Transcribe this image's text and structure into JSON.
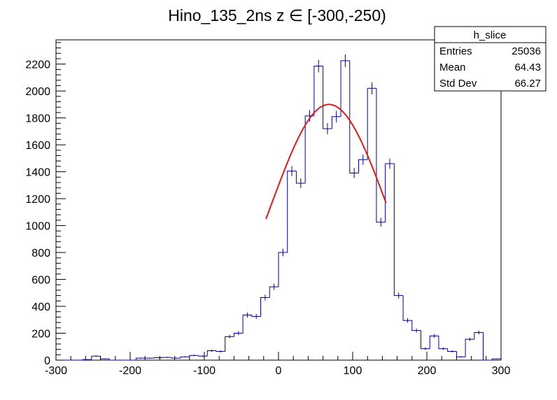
{
  "chart_data": {
    "type": "histogram",
    "title": "Hino_135_2ns z  ∈ [-300,-250)",
    "xlabel": "",
    "ylabel": "",
    "xlim": [
      -300,
      300
    ],
    "ylim": [
      0,
      2380
    ],
    "x_ticks": [
      -300,
      -200,
      -100,
      0,
      100,
      200,
      300
    ],
    "y_ticks": [
      0,
      200,
      400,
      600,
      800,
      1000,
      1200,
      1400,
      1600,
      1800,
      2000,
      2200
    ],
    "bin_width": 12,
    "bin_start": -300,
    "bins": [
      {
        "x": -300,
        "y": 0
      },
      {
        "x": -288,
        "y": 0
      },
      {
        "x": -276,
        "y": 0
      },
      {
        "x": -264,
        "y": 4
      },
      {
        "x": -252,
        "y": 30
      },
      {
        "x": -240,
        "y": 10
      },
      {
        "x": -228,
        "y": 0
      },
      {
        "x": -216,
        "y": 0
      },
      {
        "x": -204,
        "y": 0
      },
      {
        "x": -192,
        "y": 15
      },
      {
        "x": -180,
        "y": 15
      },
      {
        "x": -168,
        "y": 18
      },
      {
        "x": -156,
        "y": 20
      },
      {
        "x": -144,
        "y": 15
      },
      {
        "x": -132,
        "y": 25
      },
      {
        "x": -120,
        "y": 35
      },
      {
        "x": -108,
        "y": 30
      },
      {
        "x": -96,
        "y": 70
      },
      {
        "x": -84,
        "y": 65
      },
      {
        "x": -72,
        "y": 175
      },
      {
        "x": -60,
        "y": 200
      },
      {
        "x": -48,
        "y": 335
      },
      {
        "x": -36,
        "y": 325
      },
      {
        "x": -24,
        "y": 465
      },
      {
        "x": -12,
        "y": 545
      },
      {
        "x": 0,
        "y": 800
      },
      {
        "x": 12,
        "y": 1405
      },
      {
        "x": 24,
        "y": 1315
      },
      {
        "x": 36,
        "y": 1815
      },
      {
        "x": 48,
        "y": 2185
      },
      {
        "x": 60,
        "y": 1720
      },
      {
        "x": 72,
        "y": 1810
      },
      {
        "x": 84,
        "y": 2225
      },
      {
        "x": 96,
        "y": 1390
      },
      {
        "x": 108,
        "y": 1490
      },
      {
        "x": 120,
        "y": 2020
      },
      {
        "x": 132,
        "y": 1025
      },
      {
        "x": 144,
        "y": 1460
      },
      {
        "x": 156,
        "y": 480
      },
      {
        "x": 168,
        "y": 295
      },
      {
        "x": 180,
        "y": 220
      },
      {
        "x": 192,
        "y": 85
      },
      {
        "x": 204,
        "y": 180
      },
      {
        "x": 216,
        "y": 85
      },
      {
        "x": 228,
        "y": 65
      },
      {
        "x": 240,
        "y": 25
      },
      {
        "x": 252,
        "y": 155
      },
      {
        "x": 264,
        "y": 205
      },
      {
        "x": 276,
        "y": 0
      },
      {
        "x": 288,
        "y": 10
      }
    ],
    "fit": {
      "type": "gaussian",
      "color": "#e31a1c",
      "x_range": [
        -17,
        145
      ],
      "amplitude": 1900,
      "mean": 68,
      "sigma": 78
    },
    "hist_color": "#000099",
    "stats_box": {
      "title": "h_slice",
      "rows": [
        {
          "label": "Entries",
          "value": "25036"
        },
        {
          "label": "Mean",
          "value": "64.43"
        },
        {
          "label": "Std Dev",
          "value": "66.27"
        }
      ]
    }
  }
}
